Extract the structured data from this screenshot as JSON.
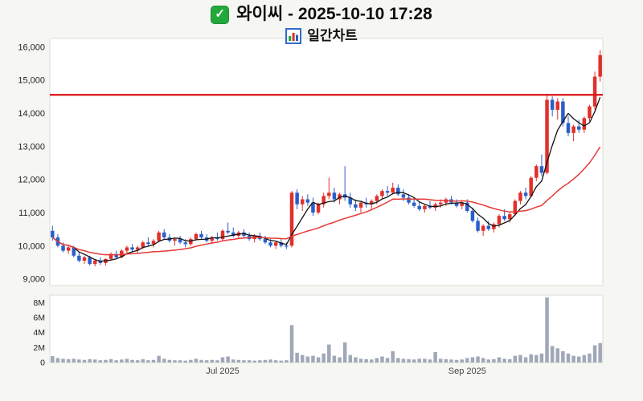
{
  "header": {
    "title": "와이씨 - 2025-10-10 17:28",
    "subtitle": "일간차트",
    "icons": {
      "checkbox": "green-checkbox",
      "chart": "mini-bar-chart"
    }
  },
  "chart_data": {
    "type": "candlestick",
    "title": "와이씨 일간차트",
    "ylim": [
      8800,
      16250
    ],
    "y_ticks": [
      {
        "value": 16000,
        "label": "16,000"
      },
      {
        "value": 15000,
        "label": "15,000"
      },
      {
        "value": 14000,
        "label": "14,000"
      },
      {
        "value": 13000,
        "label": "13,000"
      },
      {
        "value": 12000,
        "label": "12,000"
      },
      {
        "value": 11000,
        "label": "11,000"
      },
      {
        "value": 10000,
        "label": "10,000"
      },
      {
        "value": 9000,
        "label": "9,000"
      }
    ],
    "volume_ylim": [
      0,
      9.0
    ],
    "volume_unit": "M",
    "volume_ticks": [
      {
        "value": 8,
        "label": "8M"
      },
      {
        "value": 6,
        "label": "6M"
      },
      {
        "value": 4,
        "label": "4M"
      },
      {
        "value": 2,
        "label": "2M"
      },
      {
        "value": 0,
        "label": "0"
      }
    ],
    "x_ticks": [
      {
        "label": "Jul 2025",
        "index": 32
      },
      {
        "label": "Sep 2025",
        "index": 78
      }
    ],
    "ref_line": {
      "value": 14550,
      "color": "#dd1111"
    },
    "up_color": "#e0302a",
    "down_color": "#2a5fc9",
    "volume_color": "#a0a8b8",
    "moving_averages": [
      {
        "window": 5,
        "color": "#111111",
        "width": 1.3
      },
      {
        "window": 20,
        "color": "#e53935",
        "width": 1.5
      }
    ],
    "columns": [
      "open",
      "high",
      "low",
      "close",
      "volume_millions"
    ],
    "candles": [
      [
        10450,
        10600,
        10150,
        10250,
        0.85
      ],
      [
        10250,
        10350,
        9950,
        10000,
        0.6
      ],
      [
        10000,
        10100,
        9800,
        9850,
        0.5
      ],
      [
        9850,
        10000,
        9750,
        9950,
        0.45
      ],
      [
        9950,
        10000,
        9650,
        9700,
        0.5
      ],
      [
        9700,
        9800,
        9500,
        9550,
        0.4
      ],
      [
        9550,
        9700,
        9450,
        9650,
        0.35
      ],
      [
        9650,
        9700,
        9400,
        9450,
        0.45
      ],
      [
        9450,
        9600,
        9380,
        9550,
        0.4
      ],
      [
        9550,
        9650,
        9420,
        9480,
        0.3
      ],
      [
        9480,
        9620,
        9400,
        9600,
        0.35
      ],
      [
        9600,
        9800,
        9550,
        9750,
        0.45
      ],
      [
        9750,
        9850,
        9600,
        9650,
        0.3
      ],
      [
        9650,
        9900,
        9620,
        9850,
        0.4
      ],
      [
        9850,
        10000,
        9750,
        9950,
        0.5
      ],
      [
        9950,
        10050,
        9800,
        9880,
        0.35
      ],
      [
        9880,
        10000,
        9780,
        9950,
        0.3
      ],
      [
        9950,
        10150,
        9900,
        10100,
        0.45
      ],
      [
        10100,
        10250,
        10000,
        10050,
        0.3
      ],
      [
        10050,
        10200,
        9950,
        10150,
        0.35
      ],
      [
        10150,
        10450,
        10100,
        10400,
        0.9
      ],
      [
        10400,
        10500,
        10200,
        10250,
        0.5
      ],
      [
        10250,
        10350,
        10100,
        10150,
        0.35
      ],
      [
        10150,
        10250,
        10000,
        10200,
        0.3
      ],
      [
        10200,
        10300,
        10050,
        10100,
        0.3
      ],
      [
        10100,
        10200,
        9950,
        10050,
        0.25
      ],
      [
        10050,
        10250,
        10000,
        10200,
        0.35
      ],
      [
        10200,
        10400,
        10150,
        10350,
        0.5
      ],
      [
        10350,
        10450,
        10200,
        10250,
        0.35
      ],
      [
        10250,
        10350,
        10100,
        10150,
        0.3
      ],
      [
        10150,
        10300,
        10050,
        10250,
        0.35
      ],
      [
        10250,
        10400,
        10150,
        10200,
        0.3
      ],
      [
        10200,
        10500,
        10150,
        10450,
        0.7
      ],
      [
        10450,
        10700,
        10350,
        10400,
        0.8
      ],
      [
        10400,
        10550,
        10250,
        10300,
        0.4
      ],
      [
        10300,
        10450,
        10200,
        10400,
        0.35
      ],
      [
        10400,
        10500,
        10250,
        10300,
        0.3
      ],
      [
        10300,
        10400,
        10150,
        10200,
        0.3
      ],
      [
        10200,
        10350,
        10100,
        10300,
        0.25
      ],
      [
        10300,
        10400,
        10150,
        10200,
        0.3
      ],
      [
        10200,
        10300,
        10050,
        10100,
        0.35
      ],
      [
        10100,
        10200,
        9950,
        10000,
        0.4
      ],
      [
        10000,
        10150,
        9900,
        10100,
        0.3
      ],
      [
        10100,
        10200,
        9950,
        10000,
        0.25
      ],
      [
        10000,
        10100,
        9900,
        9980,
        0.3
      ],
      [
        10000,
        11650,
        9950,
        11600,
        5.0
      ],
      [
        11600,
        11700,
        11100,
        11250,
        1.3
      ],
      [
        11250,
        11500,
        11050,
        11400,
        1.0
      ],
      [
        11400,
        11550,
        11200,
        11300,
        0.8
      ],
      [
        11300,
        11450,
        10900,
        11000,
        0.9
      ],
      [
        11000,
        11300,
        10950,
        11250,
        0.7
      ],
      [
        11250,
        11600,
        11150,
        11500,
        1.2
      ],
      [
        11500,
        12050,
        11400,
        11600,
        2.4
      ],
      [
        11600,
        11750,
        11300,
        11400,
        0.9
      ],
      [
        11400,
        11600,
        11250,
        11550,
        0.7
      ],
      [
        11550,
        12400,
        11350,
        11450,
        2.7
      ],
      [
        11450,
        11600,
        11150,
        11250,
        1.0
      ],
      [
        11250,
        11400,
        11050,
        11150,
        0.7
      ],
      [
        11150,
        11350,
        11000,
        11300,
        0.5
      ],
      [
        11300,
        11450,
        11150,
        11250,
        0.45
      ],
      [
        11250,
        11400,
        11100,
        11350,
        0.4
      ],
      [
        11350,
        11550,
        11250,
        11500,
        0.6
      ],
      [
        11500,
        11700,
        11400,
        11650,
        0.8
      ],
      [
        11650,
        11800,
        11500,
        11600,
        0.6
      ],
      [
        11600,
        11900,
        11550,
        11750,
        1.5
      ],
      [
        11750,
        11850,
        11500,
        11550,
        0.6
      ],
      [
        11550,
        11700,
        11350,
        11450,
        0.5
      ],
      [
        11450,
        11550,
        11250,
        11300,
        0.45
      ],
      [
        11300,
        11450,
        11150,
        11200,
        0.4
      ],
      [
        11200,
        11350,
        11050,
        11100,
        0.5
      ],
      [
        11100,
        11250,
        11000,
        11200,
        0.5
      ],
      [
        11200,
        11350,
        11100,
        11150,
        0.4
      ],
      [
        11150,
        11300,
        11050,
        11250,
        1.4
      ],
      [
        11250,
        11400,
        11150,
        11300,
        0.5
      ],
      [
        11300,
        11450,
        11200,
        11400,
        0.45
      ],
      [
        11400,
        11500,
        11250,
        11300,
        0.4
      ],
      [
        11300,
        11400,
        11150,
        11200,
        0.35
      ],
      [
        11200,
        11350,
        11100,
        11300,
        0.4
      ],
      [
        11300,
        11400,
        11000,
        11050,
        0.6
      ],
      [
        11050,
        11150,
        10700,
        10750,
        0.7
      ],
      [
        10750,
        10850,
        10400,
        10450,
        0.8
      ],
      [
        10450,
        10650,
        10300,
        10600,
        0.6
      ],
      [
        10600,
        10750,
        10450,
        10500,
        0.4
      ],
      [
        10500,
        10700,
        10400,
        10650,
        0.45
      ],
      [
        10650,
        10950,
        10550,
        10900,
        0.7
      ],
      [
        10900,
        11100,
        10750,
        10800,
        0.5
      ],
      [
        10800,
        11000,
        10700,
        10950,
        0.45
      ],
      [
        10950,
        11400,
        10900,
        11350,
        0.9
      ],
      [
        11350,
        11650,
        11250,
        11600,
        1.0
      ],
      [
        11600,
        11750,
        11400,
        11500,
        0.7
      ],
      [
        11500,
        12100,
        11450,
        12050,
        1.1
      ],
      [
        12050,
        12450,
        11950,
        12400,
        1.0
      ],
      [
        12400,
        12750,
        12100,
        12200,
        1.2
      ],
      [
        12200,
        14550,
        12150,
        14400,
        8.7
      ],
      [
        14400,
        14500,
        13900,
        14100,
        2.2
      ],
      [
        14100,
        14450,
        13800,
        14350,
        1.9
      ],
      [
        14350,
        14450,
        13600,
        13700,
        1.5
      ],
      [
        13700,
        13900,
        13300,
        13400,
        1.2
      ],
      [
        13400,
        13650,
        13150,
        13600,
        0.9
      ],
      [
        13600,
        13800,
        13400,
        13500,
        0.8
      ],
      [
        13500,
        13900,
        13400,
        13850,
        1.0
      ],
      [
        13850,
        14250,
        13750,
        14200,
        1.2
      ],
      [
        14200,
        15250,
        14100,
        15100,
        2.3
      ],
      [
        15100,
        15900,
        14950,
        15750,
        2.6
      ]
    ]
  }
}
